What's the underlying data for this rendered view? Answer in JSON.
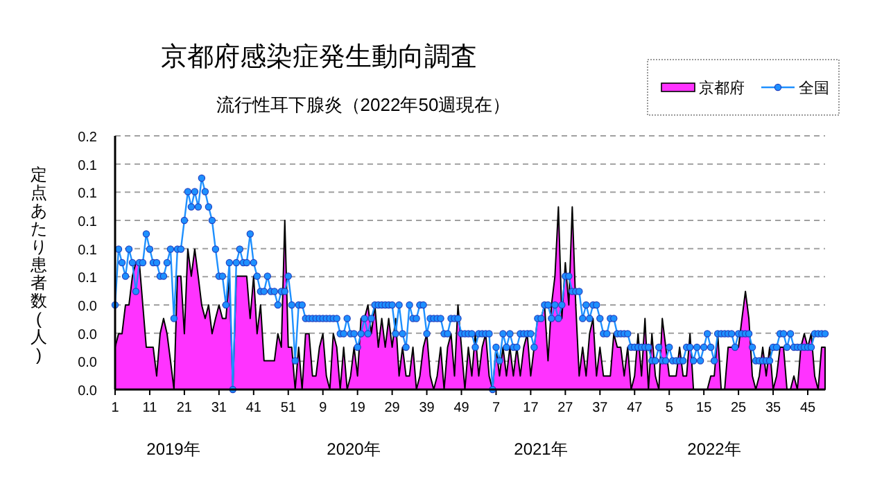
{
  "chart_data": {
    "type": "line",
    "title": "京都府感染症発生動向調査",
    "subtitle": "流行性耳下腺炎（2022年50週現在）",
    "ylabel": "定点あたり患者数(人)",
    "annotations": [
      "2019年",
      "2020年",
      "2021年",
      "2022年"
    ],
    "categories": [
      "1",
      null,
      null,
      null,
      null,
      null,
      null,
      null,
      null,
      null,
      "11",
      null,
      null,
      null,
      null,
      null,
      null,
      null,
      null,
      null,
      "21",
      null,
      null,
      null,
      null,
      null,
      null,
      null,
      null,
      null,
      "31",
      null,
      null,
      null,
      null,
      null,
      null,
      null,
      null,
      null,
      "41",
      null,
      null,
      null,
      null,
      null,
      null,
      null,
      null,
      null,
      "51",
      null,
      null,
      null,
      null,
      null,
      null,
      null,
      null,
      null,
      "9",
      null,
      null,
      null,
      null,
      null,
      null,
      null,
      null,
      null,
      "19",
      null,
      null,
      null,
      null,
      null,
      null,
      null,
      null,
      null,
      "29",
      null,
      null,
      null,
      null,
      null,
      null,
      null,
      null,
      null,
      "39",
      null,
      null,
      null,
      null,
      null,
      null,
      null,
      null,
      null,
      "49",
      null,
      null,
      null,
      null,
      null,
      null,
      null,
      null,
      null,
      "7",
      null,
      null,
      null,
      null,
      null,
      null,
      null,
      null,
      null,
      "17",
      null,
      null,
      null,
      null,
      null,
      null,
      null,
      null,
      null,
      "27",
      null,
      null,
      null,
      null,
      null,
      null,
      null,
      null,
      null,
      "37",
      null,
      null,
      null,
      null,
      null,
      null,
      null,
      null,
      null,
      "47",
      null,
      null,
      null,
      null,
      null,
      null,
      null,
      null,
      null,
      "5",
      null,
      null,
      null,
      null,
      null,
      null,
      null,
      null,
      null,
      "15",
      null,
      null,
      null,
      null,
      null,
      null,
      null,
      null,
      null,
      "25",
      null,
      null,
      null,
      null,
      null,
      null,
      null,
      null,
      null,
      "35",
      null,
      null,
      null,
      null,
      null,
      null,
      null,
      null,
      null,
      "45",
      null,
      null,
      null,
      null,
      null
    ],
    "series": [
      {
        "name": "京都府",
        "type": "area",
        "color": "#ff33ff",
        "values": [
          0.025,
          0.033,
          0.033,
          0.05,
          0.05,
          0.067,
          0.075,
          0.075,
          0.05,
          0.025,
          0.025,
          0.025,
          0.008,
          0.033,
          0.042,
          0.033,
          0.017,
          0,
          0.067,
          0.067,
          0.033,
          0.083,
          0.067,
          0.083,
          0.067,
          0.05,
          0.042,
          0.05,
          0.033,
          0.042,
          0.05,
          0.042,
          0.042,
          0.067,
          0,
          0.067,
          0.067,
          0.067,
          0.067,
          0.042,
          0.067,
          0.033,
          0.05,
          0.017,
          0.017,
          0.017,
          0.017,
          0.033,
          0.025,
          0.1,
          0.025,
          0.025,
          0,
          0.025,
          0,
          0.033,
          0.033,
          0.008,
          0.008,
          0.025,
          0.033,
          0.008,
          0,
          0.033,
          0.025,
          0,
          0.025,
          0,
          0.008,
          0.025,
          0.008,
          0.042,
          0.042,
          0.05,
          0.033,
          0.05,
          0.025,
          0.042,
          0.025,
          0.042,
          0.025,
          0.042,
          0.008,
          0.025,
          0.008,
          0.008,
          0.025,
          0,
          0.008,
          0.025,
          0.033,
          0.008,
          0,
          0.008,
          0.025,
          0,
          0.025,
          0.033,
          0.008,
          0.05,
          0.025,
          0,
          0.025,
          0.008,
          0.033,
          0.008,
          0.025,
          0.033,
          0.008,
          0,
          0.025,
          0.008,
          0.025,
          0.008,
          0.025,
          0.008,
          0.025,
          0.008,
          0.025,
          0.033,
          0.008,
          0.025,
          0.042,
          0.042,
          0.05,
          0.017,
          0.05,
          0.067,
          0.108,
          0.042,
          0.075,
          0.05,
          0.108,
          0.05,
          0.008,
          0.025,
          0.008,
          0.033,
          0.042,
          0.008,
          0.025,
          0.008,
          0.008,
          0.008,
          0.033,
          0.025,
          0.025,
          0.008,
          0.025,
          0,
          0.008,
          0.033,
          0.008,
          0.042,
          0,
          0.033,
          0.008,
          0,
          0.042,
          0.025,
          0.008,
          0.008,
          0.008,
          0.025,
          0.008,
          0.008,
          0.033,
          0,
          0,
          0,
          0,
          0,
          0.008,
          0.008,
          0.033,
          0,
          0,
          0.025,
          0.025,
          0.025,
          0.025,
          0.042,
          0.058,
          0.042,
          0.008,
          0,
          0.008,
          0.025,
          0.008,
          0.025,
          0,
          0.008,
          0.025,
          0.025,
          0,
          0,
          0.008,
          0,
          0.025,
          0.033,
          0.025,
          0.033,
          0.008,
          0,
          0.025,
          0.025
        ]
      },
      {
        "name": "全国",
        "marker": "circle",
        "color": "#1e90ff",
        "values": [
          0.05,
          0.083,
          0.075,
          0.067,
          0.083,
          0.075,
          0.058,
          0.075,
          0.075,
          0.092,
          0.083,
          0.075,
          0.075,
          0.067,
          0.067,
          0.075,
          0.083,
          0.042,
          0.083,
          0.083,
          0.1,
          0.117,
          0.108,
          0.117,
          0.108,
          0.125,
          0.117,
          0.108,
          0.1,
          0.083,
          0.067,
          0.067,
          0.05,
          0.075,
          0,
          0.075,
          0.083,
          0.075,
          0.075,
          0.092,
          0.075,
          0.067,
          0.058,
          0.058,
          0.067,
          0.058,
          0.058,
          0.05,
          0.058,
          0.058,
          0.067,
          0.05,
          0.017,
          0.05,
          0.05,
          0.042,
          0.042,
          0.042,
          0.042,
          0.042,
          0.042,
          0.042,
          0.042,
          0.042,
          0.042,
          0.033,
          0.033,
          0.042,
          0.033,
          0.033,
          0.025,
          0.033,
          0.042,
          0.033,
          0.042,
          0.05,
          0.05,
          0.05,
          0.05,
          0.05,
          0.05,
          0.033,
          0.05,
          0.033,
          0.025,
          0.05,
          0.042,
          0.042,
          0.05,
          0.05,
          0.033,
          0.042,
          0.042,
          0.042,
          0.042,
          0.033,
          0.033,
          0.042,
          0.042,
          0.042,
          0.033,
          0.033,
          0.033,
          0.033,
          0.025,
          0.033,
          0.033,
          0.033,
          0.033,
          0,
          0.025,
          0.017,
          0.033,
          0.025,
          0.033,
          0.025,
          0.025,
          0.033,
          0.033,
          0.033,
          0.033,
          0.025,
          0.042,
          0.042,
          0.05,
          0.05,
          0.042,
          0.05,
          0.042,
          0.05,
          0.067,
          0.067,
          0.058,
          0.058,
          0.058,
          0.042,
          0.05,
          0.042,
          0.05,
          0.05,
          0.042,
          0.033,
          0.033,
          0.042,
          0.042,
          0.033,
          0.033,
          0.033,
          0.033,
          0.025,
          0.025,
          0.025,
          0.025,
          0.025,
          0.025,
          0.017,
          0.017,
          0.025,
          0.017,
          0.017,
          0.025,
          0.017,
          0.017,
          0.017,
          0.017,
          0.025,
          0.025,
          0.017,
          0.025,
          0.017,
          0.025,
          0.033,
          0.025,
          0.017,
          0.033,
          0.033,
          0.033,
          0.033,
          0.033,
          0.025,
          0.033,
          0.033,
          0.033,
          0.033,
          0.025,
          0.017,
          0.017,
          0.017,
          0.017,
          0.017,
          0.025,
          0.025,
          0.033,
          0.033,
          0.025,
          0.033,
          0.025,
          0.025,
          0.025,
          0.025,
          0.025,
          0.025,
          0.033,
          0.033,
          0.033,
          0.033
        ]
      }
    ],
    "ylim": [
      0,
      0.15
    ],
    "yticks": [
      {
        "value": 0,
        "label": "0.0"
      },
      {
        "value": 0.0167,
        "label": "0.0"
      },
      {
        "value": 0.0333,
        "label": "0.0"
      },
      {
        "value": 0.05,
        "label": "0.0"
      },
      {
        "value": 0.0667,
        "label": "0.1"
      },
      {
        "value": 0.0833,
        "label": "0.1"
      },
      {
        "value": 0.1,
        "label": "0.1"
      },
      {
        "value": 0.1167,
        "label": "0.1"
      },
      {
        "value": 0.1333,
        "label": "0.1"
      },
      {
        "value": 0.15,
        "label": "0.2"
      }
    ],
    "grid": "y",
    "legend": "top right"
  }
}
